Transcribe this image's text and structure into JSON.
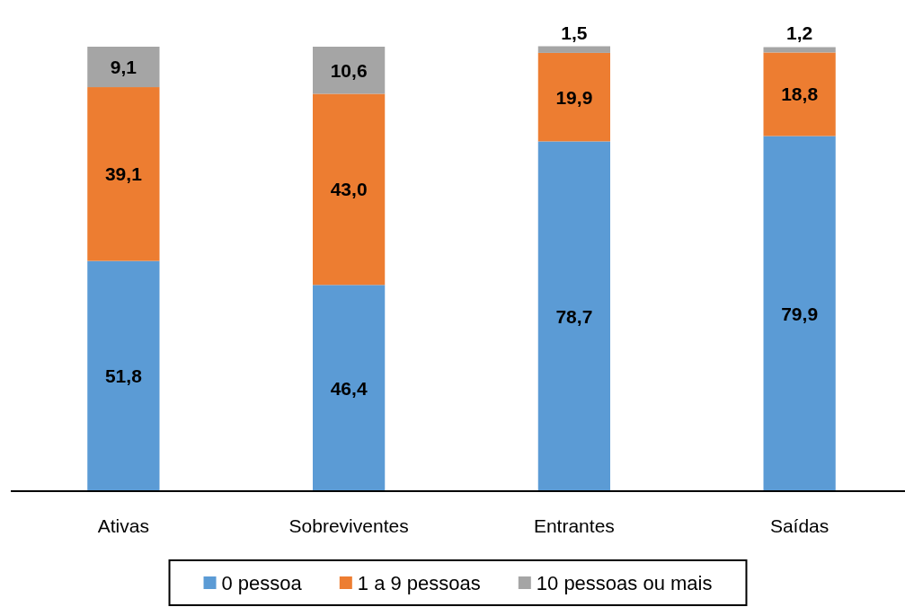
{
  "chart_data": {
    "type": "bar",
    "stacked": true,
    "categories": [
      "Ativas",
      "Sobreviventes",
      "Entrantes",
      "Saídas"
    ],
    "series": [
      {
        "name": "0 pessoa",
        "color": "#5b9bd5",
        "values": [
          51.8,
          46.4,
          78.7,
          79.9
        ],
        "value_labels": [
          "51,8",
          "46,4",
          "78,7",
          "79,9"
        ]
      },
      {
        "name": "1 a 9 pessoas",
        "color": "#ed7d31",
        "values": [
          39.1,
          43.0,
          19.9,
          18.8
        ],
        "value_labels": [
          "39,1",
          "43,0",
          "19,9",
          "18,8"
        ]
      },
      {
        "name": "10 pessoas ou mais",
        "color": "#a5a5a5",
        "values": [
          9.1,
          10.6,
          1.5,
          1.2
        ],
        "value_labels": [
          "9,1",
          "10,6",
          "1,5",
          "1,2"
        ]
      }
    ],
    "ylim": [
      0,
      100
    ],
    "tick_labels": "x",
    "legend": "bottom"
  }
}
